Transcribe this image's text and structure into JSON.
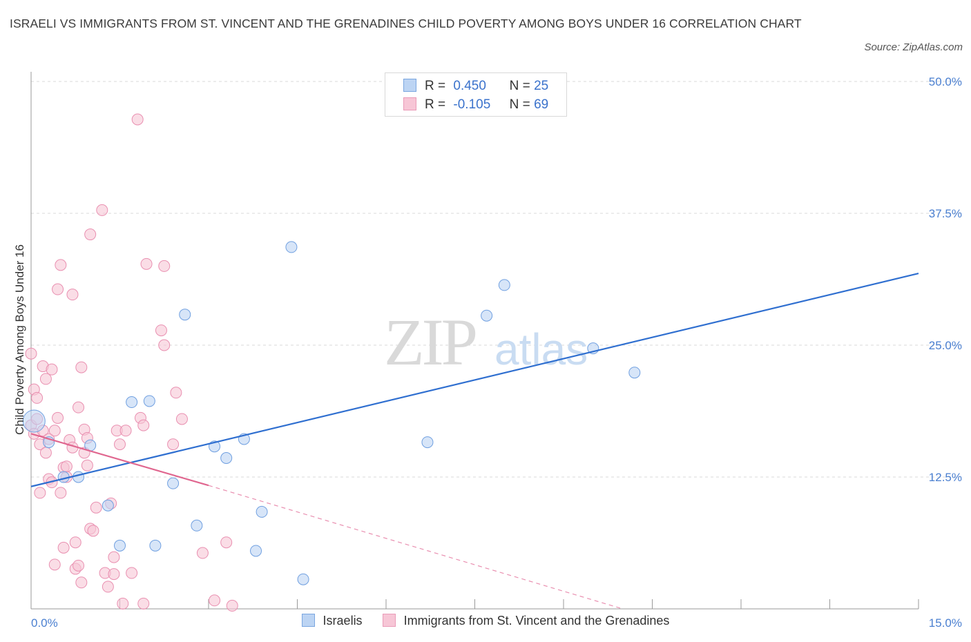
{
  "title": "ISRAELI VS IMMIGRANTS FROM ST. VINCENT AND THE GRENADINES CHILD POVERTY AMONG BOYS UNDER 16 CORRELATION CHART",
  "source": "Source: ZipAtlas.com",
  "watermark": {
    "zip": "ZIP",
    "atlas": "atlas"
  },
  "legend_top": [
    {
      "r_label": "R =",
      "r_value": "0.450",
      "n_label": "N =",
      "n_value": "25",
      "color": "#a9c8ef"
    },
    {
      "r_label": "R =",
      "r_value": "-0.105",
      "n_label": "N =",
      "n_value": "69",
      "color": "#f4b7cb"
    }
  ],
  "legend_bottom": [
    {
      "label": "Israelis",
      "color": "#a9c8ef"
    },
    {
      "label": "Immigrants from St. Vincent and the Grenadines",
      "color": "#f4b7cb"
    }
  ],
  "chart_data": {
    "type": "scatter",
    "title": "ISRAELI VS IMMIGRANTS FROM ST. VINCENT AND THE GRENADINES CHILD POVERTY AMONG BOYS UNDER 16 CORRELATION CHART",
    "xlabel": "",
    "ylabel": "Child Poverty Among Boys Under 16",
    "xlim": [
      0,
      15
    ],
    "ylim": [
      0,
      50
    ],
    "x_tick_labels": [
      "0.0%",
      "15.0%"
    ],
    "y_ticks": [
      12.5,
      25.0,
      37.5,
      50.0
    ],
    "y_tick_labels": [
      "12.5%",
      "25.0%",
      "37.5%",
      "50.0%"
    ],
    "grid": true,
    "series": [
      {
        "name": "Israelis",
        "color": "#6f9fe0",
        "fill": "#bcd4f3",
        "r": 0.45,
        "n": 25,
        "points": [
          [
            0.05,
            17.8
          ],
          [
            0.3,
            15.8
          ],
          [
            0.55,
            12.5
          ],
          [
            0.8,
            12.5
          ],
          [
            1.0,
            15.5
          ],
          [
            1.3,
            9.8
          ],
          [
            1.5,
            6.0
          ],
          [
            1.7,
            19.6
          ],
          [
            2.0,
            19.7
          ],
          [
            2.1,
            6.0
          ],
          [
            2.4,
            11.9
          ],
          [
            2.6,
            27.9
          ],
          [
            2.8,
            7.9
          ],
          [
            3.1,
            15.4
          ],
          [
            3.3,
            14.3
          ],
          [
            3.6,
            16.1
          ],
          [
            3.8,
            5.5
          ],
          [
            3.9,
            9.2
          ],
          [
            4.4,
            34.3
          ],
          [
            4.6,
            2.8
          ],
          [
            6.7,
            15.8
          ],
          [
            7.7,
            27.8
          ],
          [
            8.0,
            30.7
          ],
          [
            9.5,
            24.7
          ],
          [
            10.2,
            22.4
          ]
        ],
        "trend": {
          "x": [
            0,
            15
          ],
          "y": [
            11.6,
            31.8
          ],
          "style": "solid"
        }
      },
      {
        "name": "Immigrants from St. Vincent and the Grenadines",
        "color": "#e98fb0",
        "fill": "#f7c6d6",
        "r": -0.105,
        "n": 69,
        "points": [
          [
            0.0,
            24.2
          ],
          [
            0.0,
            17.4
          ],
          [
            0.05,
            20.8
          ],
          [
            0.05,
            16.6
          ],
          [
            0.1,
            18.0
          ],
          [
            0.1,
            20.0
          ],
          [
            0.15,
            15.6
          ],
          [
            0.15,
            11.0
          ],
          [
            0.2,
            23.0
          ],
          [
            0.2,
            16.9
          ],
          [
            0.25,
            21.8
          ],
          [
            0.25,
            14.8
          ],
          [
            0.3,
            12.3
          ],
          [
            0.3,
            16.1
          ],
          [
            0.35,
            12.0
          ],
          [
            0.35,
            22.7
          ],
          [
            0.4,
            4.2
          ],
          [
            0.4,
            16.9
          ],
          [
            0.45,
            30.3
          ],
          [
            0.45,
            18.1
          ],
          [
            0.5,
            32.6
          ],
          [
            0.5,
            11.0
          ],
          [
            0.55,
            13.4
          ],
          [
            0.55,
            5.8
          ],
          [
            0.6,
            13.5
          ],
          [
            0.6,
            12.5
          ],
          [
            0.65,
            16.0
          ],
          [
            0.7,
            29.8
          ],
          [
            0.7,
            15.3
          ],
          [
            0.75,
            3.8
          ],
          [
            0.75,
            6.3
          ],
          [
            0.8,
            4.1
          ],
          [
            0.8,
            19.1
          ],
          [
            0.85,
            22.9
          ],
          [
            0.85,
            2.5
          ],
          [
            0.9,
            17.0
          ],
          [
            0.9,
            14.8
          ],
          [
            0.95,
            13.6
          ],
          [
            0.95,
            16.2
          ],
          [
            1.0,
            35.5
          ],
          [
            1.0,
            7.6
          ],
          [
            1.05,
            7.4
          ],
          [
            1.1,
            9.6
          ],
          [
            1.2,
            37.8
          ],
          [
            1.25,
            3.4
          ],
          [
            1.3,
            2.1
          ],
          [
            1.35,
            10.0
          ],
          [
            1.4,
            4.9
          ],
          [
            1.4,
            3.3
          ],
          [
            1.45,
            16.9
          ],
          [
            1.5,
            15.6
          ],
          [
            1.55,
            0.5
          ],
          [
            1.6,
            16.9
          ],
          [
            1.7,
            3.4
          ],
          [
            1.8,
            46.4
          ],
          [
            1.85,
            18.1
          ],
          [
            1.9,
            17.4
          ],
          [
            1.9,
            0.5
          ],
          [
            1.95,
            32.7
          ],
          [
            2.2,
            26.4
          ],
          [
            2.25,
            32.5
          ],
          [
            2.25,
            25.0
          ],
          [
            2.4,
            15.6
          ],
          [
            2.45,
            20.5
          ],
          [
            2.55,
            18.0
          ],
          [
            2.9,
            5.3
          ],
          [
            3.1,
            0.8
          ],
          [
            3.3,
            6.3
          ],
          [
            3.4,
            0.3
          ]
        ],
        "trend": {
          "x": [
            0,
            3.0
          ],
          "y": [
            16.6,
            11.7
          ],
          "style": "solid",
          "extension": {
            "x": [
              3.0,
              10.0
            ],
            "y": [
              11.7,
              0.0
            ],
            "style": "dashed"
          }
        }
      }
    ]
  }
}
